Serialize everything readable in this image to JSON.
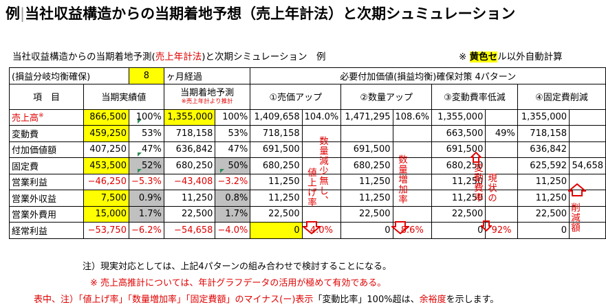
{
  "title": {
    "prefix": "例",
    "separator": "|",
    "text": "当社収益構造からの当期着地予想（売上年計法）と次期シュミュレーション"
  },
  "caption_left": {
    "a": "当社収益構造からの当期着地予測(",
    "b": "売上年計法",
    "c": ")と次期シミュレーション　例"
  },
  "caption_right": {
    "a": "※ ",
    "b": "黄色セ",
    "c": "ル以外自動計算"
  },
  "header": {
    "breakeven": "(損益分岐均衡確保)",
    "months_value": "8",
    "months_label": "ヶ月経過",
    "required": "必要付加価値(損益均衡)確保対策 4パターン",
    "item": "項　目",
    "actual": "当期実績値",
    "forecast": "当期着地予測",
    "forecast_note": "※売上年計より推計",
    "p1": "①売価アップ",
    "p2": "②数量アップ",
    "p3": "③変動費率低減",
    "p4": "④固定費削減"
  },
  "rows": [
    {
      "label": "売上高",
      "label_mark": "※",
      "actual": "866,500",
      "actual_pct": "100%",
      "forecast": "1,355,000",
      "forecast_pct": "100%",
      "p1": "1,409,658",
      "p1_pct": "104.0%",
      "p2": "1,471,295",
      "p2_pct": "108.6%",
      "p3": "1,355,000",
      "p3_pct": "",
      "p4": "1,355,000",
      "p4_x": ""
    },
    {
      "label": "変動費",
      "label_mark": "",
      "actual": "459,250",
      "actual_pct": "53%",
      "forecast": "718,158",
      "forecast_pct": "53%",
      "p1": "718,158",
      "p1_pct": "",
      "p2": "",
      "p2_pct": "",
      "p3": "663,500",
      "p3_pct": "49%",
      "p4": "718,158",
      "p4_x": ""
    },
    {
      "label": "付加価値額",
      "label_mark": "",
      "actual": "407,250",
      "actual_pct": "47%",
      "forecast": "636,842",
      "forecast_pct": "47%",
      "p1": "691,500",
      "p1_pct": "",
      "p2": "691,500",
      "p2_pct": "",
      "p3": "691,500",
      "p3_pct": "",
      "p4": "636,842",
      "p4_x": ""
    },
    {
      "label": "固定費",
      "label_mark": "",
      "actual": "453,500",
      "actual_pct": "52%",
      "forecast": "680,250",
      "forecast_pct": "50%",
      "p1": "680,250",
      "p1_pct": "",
      "p2": "680,250",
      "p2_pct": "",
      "p3": "680,250",
      "p3_pct": "",
      "p4": "625,592",
      "p4_x": "54,658"
    },
    {
      "label": "営業利益",
      "label_mark": "",
      "actual": "−46,250",
      "actual_pct": "−5.3%",
      "forecast": "−43,408",
      "forecast_pct": "−3.2%",
      "p1": "11,250",
      "p1_pct": "",
      "p2": "11,250",
      "p2_pct": "",
      "p3": "11,250",
      "p3_pct": "",
      "p4": "11,250",
      "p4_x": ""
    },
    {
      "label": "営業外収益",
      "label_mark": "",
      "actual": "7,500",
      "actual_pct": "0.9%",
      "forecast": "11,250",
      "forecast_pct": "0.8%",
      "p1": "11,250",
      "p1_pct": "",
      "p2": "11,250",
      "p2_pct": "",
      "p3": "11,250",
      "p3_pct": "",
      "p4": "11,250",
      "p4_x": ""
    },
    {
      "label": "営業外費用",
      "label_mark": "",
      "actual": "15,000",
      "actual_pct": "1.7%",
      "forecast": "22,500",
      "forecast_pct": "1.7%",
      "p1": "22,500",
      "p1_pct": "",
      "p2": "22,500",
      "p2_pct": "",
      "p3": "22,500",
      "p3_pct": "",
      "p4": "22,500",
      "p4_x": ""
    },
    {
      "label": "経常利益",
      "label_mark": "",
      "actual": "−53,750",
      "actual_pct": "−6.2%",
      "forecast": "−54,658",
      "forecast_pct": "−4.0%",
      "p1": "0",
      "p1_pct": "4.0%",
      "p2": "0",
      "p2_pct": "8.6%",
      "p3": "0",
      "p3_pct": "92%",
      "p4": "0",
      "p4_x": ""
    }
  ],
  "annotations": {
    "p1_a": "数量減少無し、",
    "p1_b": "値上げ率",
    "p2": "数量増加率",
    "p3_a": "変動費率",
    "p3_b": "現状の",
    "p4": "削減額"
  },
  "notes": {
    "n1": "注）現実対応としては、上記4パターンの組み合わせで検討することになる。",
    "n2": "※ 売上高推計については、年計グラフデータの活用が極めて有効である。",
    "n3_a": "表中、注）「値上げ率」「数量増加率」「固定費額」の",
    "n3_b": "マイナス(ー)表示",
    "n3_c": "「変動比率」100%超は、",
    "n3_d": "余裕度",
    "n3_e": "を示します。"
  },
  "colors": {
    "highlight": "#ffff00",
    "red": "#e00000",
    "grey": "#c0c0c0"
  }
}
